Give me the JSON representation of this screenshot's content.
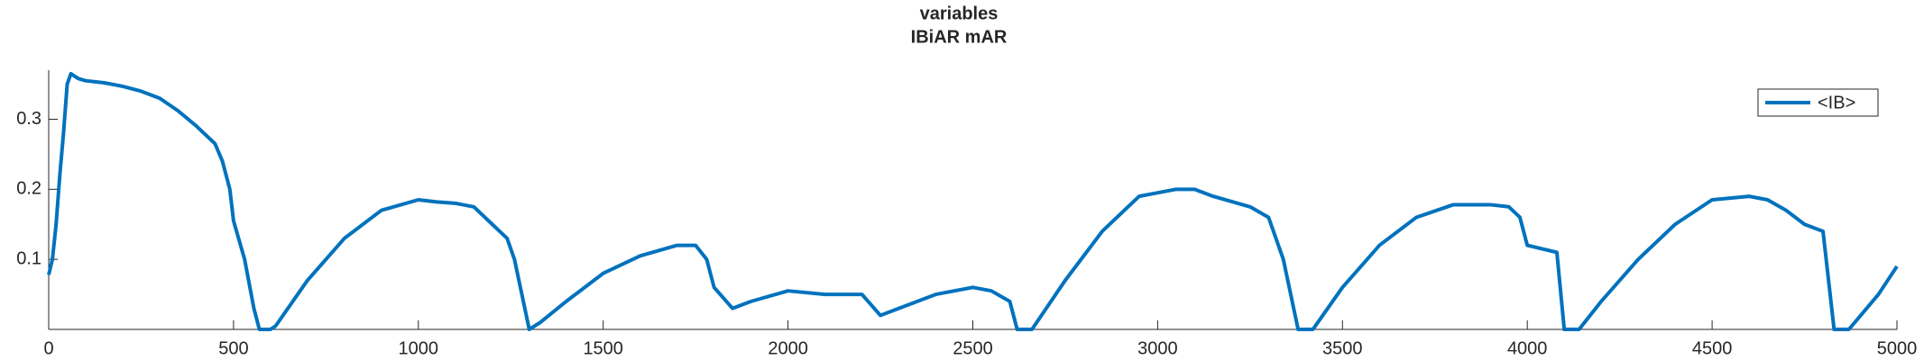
{
  "chart_data": {
    "type": "line",
    "title": "variables",
    "subtitle": "IBiAR mAR",
    "x": [
      0,
      10,
      20,
      30,
      40,
      50,
      60,
      80,
      100,
      150,
      200,
      250,
      300,
      350,
      400,
      450,
      470,
      490,
      500,
      530,
      555,
      570,
      600,
      614,
      700,
      800,
      900,
      1000,
      1050,
      1100,
      1150,
      1180,
      1200,
      1240,
      1260,
      1280,
      1300,
      1330,
      1400,
      1500,
      1600,
      1700,
      1750,
      1780,
      1800,
      1850,
      1900,
      2000,
      2100,
      2200,
      2250,
      2300,
      2400,
      2500,
      2550,
      2600,
      2620,
      2660,
      2750,
      2850,
      2950,
      3050,
      3100,
      3150,
      3250,
      3300,
      3340,
      3380,
      3420,
      3500,
      3600,
      3700,
      3800,
      3900,
      3950,
      3980,
      4000,
      4080,
      4100,
      4140,
      4200,
      4300,
      4400,
      4500,
      4600,
      4650,
      4700,
      4750,
      4800,
      4830,
      4870,
      4950,
      5000
    ],
    "series": [
      {
        "name": "<IB>",
        "color": "#0072bd",
        "values": [
          0.078,
          0.1,
          0.15,
          0.22,
          0.28,
          0.35,
          0.365,
          0.358,
          0.355,
          0.352,
          0.347,
          0.34,
          0.33,
          0.312,
          0.29,
          0.265,
          0.24,
          0.2,
          0.155,
          0.1,
          0.03,
          0,
          0,
          0.005,
          0.07,
          0.13,
          0.17,
          0.185,
          0.182,
          0.18,
          0.175,
          0.16,
          0.15,
          0.13,
          0.1,
          0.05,
          0,
          0.01,
          0.04,
          0.08,
          0.105,
          0.12,
          0.12,
          0.1,
          0.06,
          0.03,
          0.04,
          0.055,
          0.05,
          0.05,
          0.02,
          0.03,
          0.05,
          0.06,
          0.055,
          0.04,
          0,
          0,
          0.07,
          0.14,
          0.19,
          0.2,
          0.2,
          0.19,
          0.175,
          0.16,
          0.1,
          0,
          0,
          0.06,
          0.12,
          0.16,
          0.178,
          0.178,
          0.175,
          0.16,
          0.12,
          0.11,
          0,
          0,
          0.04,
          0.1,
          0.15,
          0.185,
          0.19,
          0.185,
          0.17,
          0.15,
          0.14,
          0,
          0,
          0.05,
          0.09
        ]
      }
    ],
    "xlim": [
      0,
      5000
    ],
    "xticks": [
      0,
      500,
      1000,
      1500,
      2000,
      2500,
      3000,
      3500,
      4000,
      4500,
      5000
    ],
    "ylim": [
      0,
      0.37
    ],
    "yticks": [
      0.1,
      0.2,
      0.3
    ],
    "legend": "top-right"
  }
}
